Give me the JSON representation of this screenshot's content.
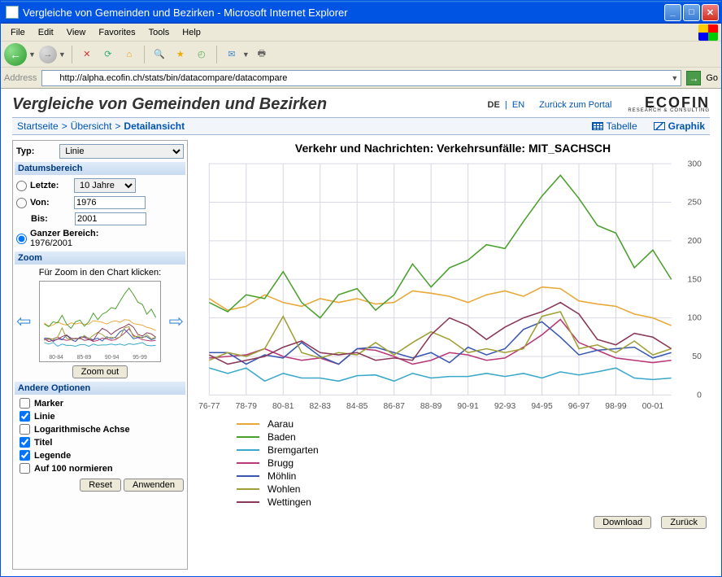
{
  "window": {
    "title": "Vergleiche von Gemeinden und Bezirken - Microsoft Internet Explorer"
  },
  "menubar": [
    "File",
    "Edit",
    "View",
    "Favorites",
    "Tools",
    "Help"
  ],
  "address": {
    "label": "Address",
    "url": "http://alpha.ecofin.ch/stats/bin/datacompare/datacompare",
    "go": "Go"
  },
  "page": {
    "heading": "Vergleiche von Gemeinden und Bezirken",
    "lang_de": "DE",
    "lang_en": "EN",
    "portal": "Zurück zum Portal",
    "logo": "ECOFIN",
    "logo_sub": "RESEARCH & CONSULTING"
  },
  "breadcrumb": {
    "items": [
      "Startseite",
      "Übersicht",
      "Detailansicht"
    ],
    "tab_table": "Tabelle",
    "tab_graph": "Graphik"
  },
  "sidebar": {
    "typ_label": "Typ:",
    "typ_value": "Linie",
    "date_title": "Datumsbereich",
    "letzte": "Letzte:",
    "letzte_val": "10 Jahre",
    "von": "Von:",
    "von_val": "1976",
    "bis": "Bis:",
    "bis_val": "2001",
    "ganz": "Ganzer Bereich:",
    "ganz_range": "1976/2001",
    "zoom_title": "Zoom",
    "zoom_hint": "Für Zoom in den Chart klicken:",
    "zoom_ticks": [
      "80-84",
      "85-89",
      "90-94",
      "95-99"
    ],
    "zoom_out": "Zoom out",
    "other_title": "Andere Optionen",
    "opts": {
      "marker": "Marker",
      "linie": "Linie",
      "log": "Logarithmische Achse",
      "titel": "Titel",
      "legende": "Legende",
      "norm": "Auf 100 normieren"
    },
    "reset": "Reset",
    "apply": "Anwenden"
  },
  "chart": {
    "title": "Verkehr und Nachrichten: Verkehrsunfälle: MIT_SACHSCH",
    "ylim": [
      0,
      300
    ],
    "yticks": [
      0,
      50,
      100,
      150,
      200,
      250,
      300
    ],
    "xlabels": [
      "76-77",
      "78-79",
      "80-81",
      "82-83",
      "84-85",
      "86-87",
      "88-89",
      "90-91",
      "92-93",
      "94-95",
      "96-97",
      "98-99",
      "00-01"
    ],
    "grid_color": "#d8d8e4",
    "background": "#ffffff",
    "series": [
      {
        "name": "Aarau",
        "color": "#e8a838",
        "values": [
          125,
          110,
          115,
          130,
          120,
          115,
          125,
          120,
          125,
          118,
          120,
          135,
          132,
          128,
          120,
          130,
          135,
          128,
          140,
          138,
          122,
          118,
          115,
          105,
          100,
          90
        ]
      },
      {
        "name": "Baden",
        "color": "#4aa02c",
        "values": [
          120,
          108,
          130,
          125,
          160,
          120,
          100,
          130,
          138,
          110,
          130,
          170,
          140,
          165,
          175,
          195,
          190,
          225,
          258,
          285,
          255,
          220,
          210,
          165,
          188,
          150
        ]
      },
      {
        "name": "Bremgarten",
        "color": "#3aa8c8",
        "values": [
          35,
          28,
          35,
          18,
          28,
          22,
          22,
          18,
          25,
          26,
          18,
          28,
          22,
          24,
          24,
          28,
          24,
          28,
          22,
          30,
          26,
          30,
          35,
          22,
          20,
          22
        ]
      },
      {
        "name": "Brugg",
        "color": "#b83878",
        "values": [
          48,
          50,
          52,
          60,
          50,
          45,
          48,
          40,
          60,
          58,
          50,
          40,
          45,
          55,
          52,
          45,
          48,
          62,
          78,
          98,
          68,
          58,
          48,
          45,
          42,
          45
        ]
      },
      {
        "name": "Möhlin",
        "color": "#3858b0",
        "values": [
          55,
          55,
          40,
          52,
          48,
          68,
          50,
          40,
          60,
          62,
          55,
          48,
          55,
          42,
          62,
          52,
          60,
          85,
          95,
          75,
          52,
          58,
          60,
          62,
          48,
          55
        ]
      },
      {
        "name": "Wohlen",
        "color": "#a0a038",
        "values": [
          45,
          55,
          50,
          60,
          102,
          55,
          48,
          55,
          52,
          68,
          52,
          68,
          82,
          72,
          55,
          60,
          55,
          60,
          102,
          108,
          60,
          65,
          55,
          70,
          52,
          60
        ]
      },
      {
        "name": "Wettingen",
        "color": "#8a3858",
        "values": [
          52,
          40,
          45,
          50,
          62,
          70,
          55,
          52,
          55,
          45,
          48,
          45,
          78,
          100,
          90,
          72,
          88,
          100,
          108,
          120,
          105,
          72,
          65,
          80,
          75,
          60
        ]
      }
    ]
  },
  "buttons": {
    "download": "Download",
    "back": "Zurück"
  }
}
